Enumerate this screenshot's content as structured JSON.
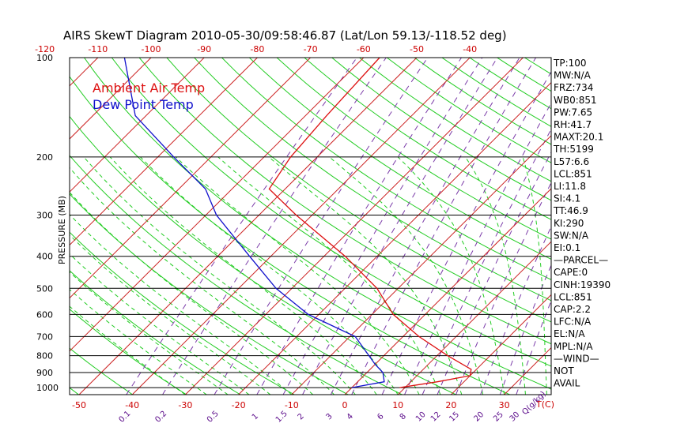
{
  "title": "AIRS SkewT Diagram 2010-05-30/09:58:46.87 (Lat/Lon 59.13/-118.52 deg)",
  "colors": {
    "temperature": "#dd1111",
    "dewpoint": "#1010cc",
    "isotherm": "#cc2222",
    "dry_adiabat": "#22cc22",
    "moist_adiabat": "#22cc22",
    "mixing_ratio": "#7a3aa8",
    "axis": "#000000"
  },
  "chart_data": {
    "type": "line",
    "title": "AIRS SkewT Diagram 2010-05-30/09:58:46.87 (Lat/Lon 59.13/-118.52 deg)",
    "xlabel": "T(C)",
    "ylabel": "PRESSURE (MB)",
    "y_scale": "log",
    "ylim": [
      1050,
      100
    ],
    "xlim_at_bottom": [
      -52,
      42
    ],
    "bottom_temp_ticks": [
      -50,
      -40,
      -30,
      -20,
      -10,
      0,
      10,
      20,
      30
    ],
    "top_temp_ticks": [
      -120,
      -110,
      -100,
      -90,
      -80,
      -70,
      -60,
      -50,
      -40
    ],
    "pressure_ticks": [
      100,
      200,
      300,
      400,
      500,
      600,
      700,
      800,
      900,
      1000
    ],
    "isobars": [
      200,
      300,
      400,
      500,
      600,
      700,
      800,
      900,
      1000
    ],
    "mixing_ratio_ticks": [
      0.1,
      0.2,
      0.5,
      1,
      1.5,
      2,
      3,
      4,
      6,
      8,
      10,
      12,
      15,
      20,
      25,
      30
    ],
    "mixing_ratio_unit_label": "Q(g/kg)",
    "legend_placement": "top-left",
    "series": [
      {
        "name": "Ambient Air Temp",
        "color": "#dd1111",
        "points": [
          {
            "p": 1000,
            "t": 9
          },
          {
            "p": 960,
            "t": 15
          },
          {
            "p": 920,
            "t": 20
          },
          {
            "p": 880,
            "t": 19
          },
          {
            "p": 800,
            "t": 12
          },
          {
            "p": 700,
            "t": 3
          },
          {
            "p": 600,
            "t": -6
          },
          {
            "p": 500,
            "t": -14
          },
          {
            "p": 400,
            "t": -26
          },
          {
            "p": 300,
            "t": -43
          },
          {
            "p": 250,
            "t": -53
          },
          {
            "p": 200,
            "t": -55
          },
          {
            "p": 150,
            "t": -56
          },
          {
            "p": 100,
            "t": -57
          }
        ]
      },
      {
        "name": "Dew Point Temp",
        "color": "#1010cc",
        "points": [
          {
            "p": 1000,
            "t": 0
          },
          {
            "p": 960,
            "t": 5
          },
          {
            "p": 900,
            "t": 3
          },
          {
            "p": 850,
            "t": 0
          },
          {
            "p": 700,
            "t": -9
          },
          {
            "p": 600,
            "t": -22
          },
          {
            "p": 500,
            "t": -33
          },
          {
            "p": 400,
            "t": -44
          },
          {
            "p": 300,
            "t": -58
          },
          {
            "p": 250,
            "t": -65
          },
          {
            "p": 200,
            "t": -77
          },
          {
            "p": 150,
            "t": -92
          },
          {
            "p": 100,
            "t": -105
          }
        ]
      }
    ]
  },
  "legend": {
    "temp_label": "Ambient Air Temp",
    "dew_label": "Dew Point Temp"
  },
  "indices": [
    "TP:100",
    "MW:N/A",
    "FRZ:734",
    "WB0:851",
    "PW:7.65",
    "RH:41.7",
    "MAXT:20.1",
    "TH:5199",
    "L57:6.6",
    "LCL:851",
    "LI:11.8",
    "SI:4.1",
    "TT:46.9",
    "KI:290",
    "SW:N/A",
    "EI:0.1",
    "—PARCEL—",
    "CAPE:0",
    "CINH:19390",
    "LCL:851",
    "CAP:2.2",
    "LFC:N/A",
    "EL:N/A",
    "MPL:N/A",
    "—WIND—",
    "NOT",
    "AVAIL"
  ]
}
